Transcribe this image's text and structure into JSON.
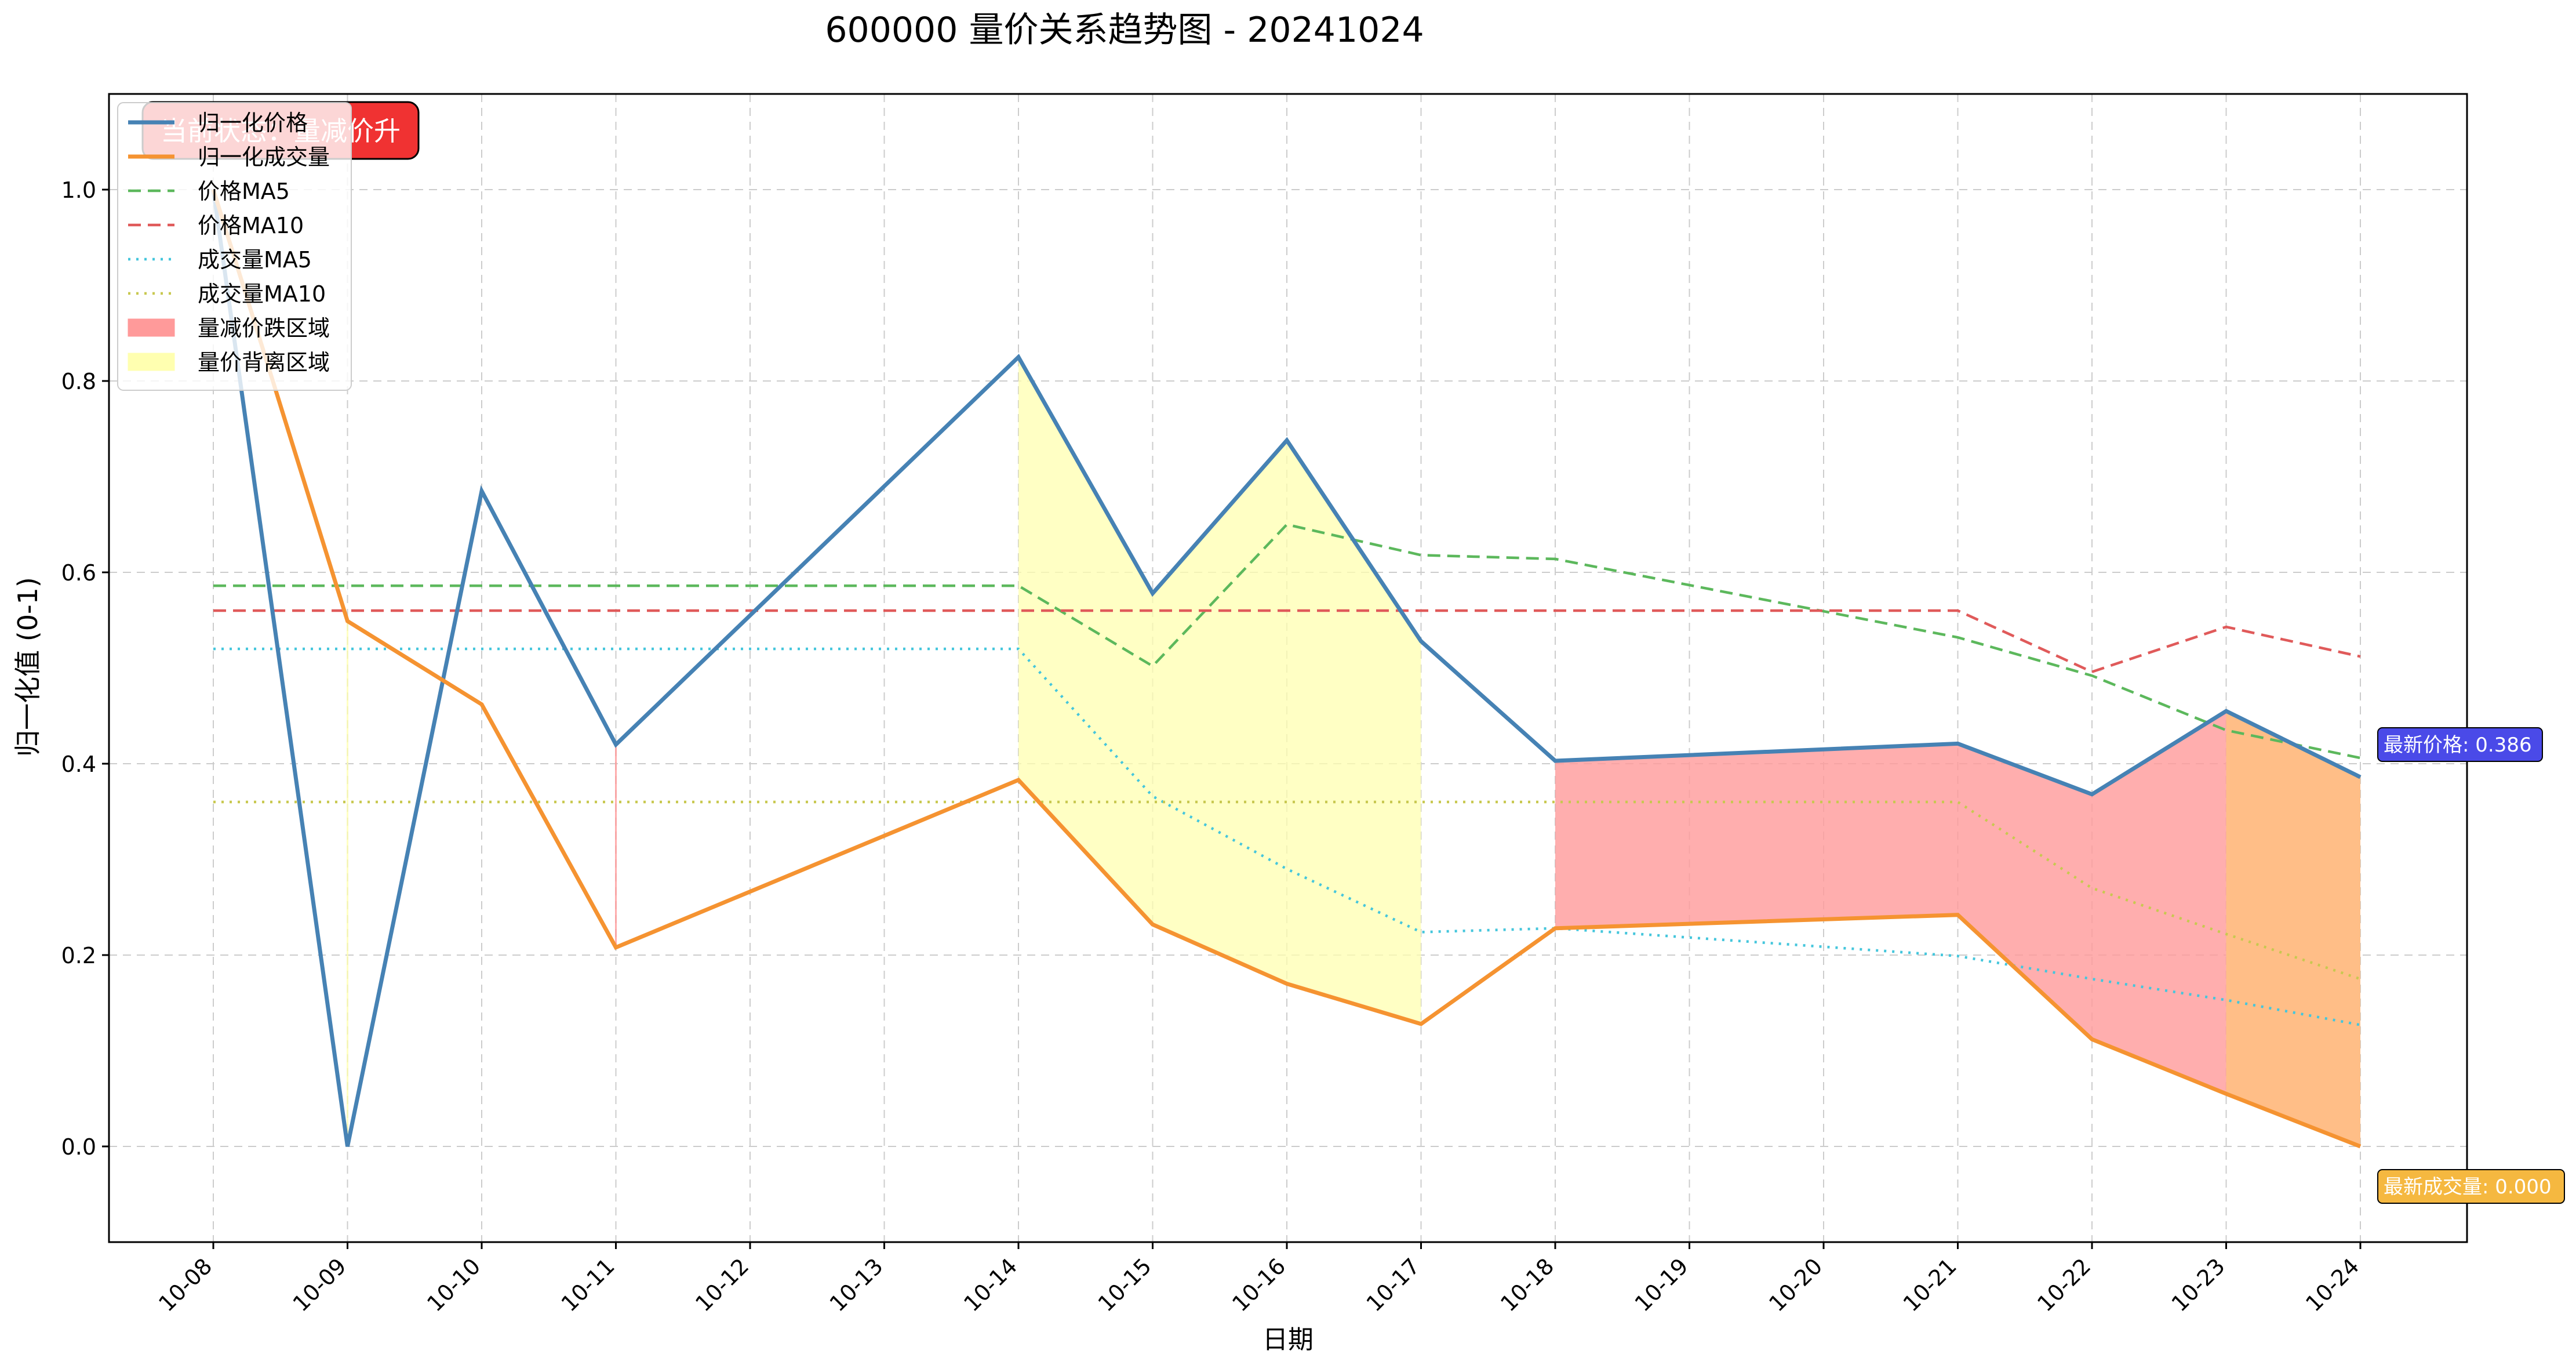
{
  "chart_data": {
    "type": "line",
    "title": "600000 量价关系趋势图 - 20241024",
    "xlabel": "日期",
    "ylabel": "归一化值 (0-1)",
    "ylim": [
      -0.1,
      1.1
    ],
    "yticks": [
      "0.0",
      "0.2",
      "0.4",
      "0.6",
      "0.8",
      "1.0"
    ],
    "grid": true,
    "legend_position": "top-left",
    "categories": [
      "10-08",
      "10-09",
      "10-10",
      "10-11",
      "10-12",
      "10-13",
      "10-14",
      "10-15",
      "10-16",
      "10-17",
      "10-18",
      "10-19",
      "10-20",
      "10-21",
      "10-22",
      "10-23",
      "10-24"
    ],
    "series": [
      {
        "name": "归一化价格",
        "style": "solid",
        "color": "#4682b4",
        "points": [
          [
            "10-08",
            1.0
          ],
          [
            "10-09",
            0.0
          ],
          [
            "10-10",
            0.685
          ],
          [
            "10-11",
            0.42
          ],
          [
            "10-14",
            0.825
          ],
          [
            "10-15",
            0.578
          ],
          [
            "10-16",
            0.738
          ],
          [
            "10-17",
            0.528
          ],
          [
            "10-18",
            0.403
          ],
          [
            "10-21",
            0.421
          ],
          [
            "10-22",
            0.368
          ],
          [
            "10-23",
            0.455
          ],
          [
            "10-24",
            0.386
          ]
        ]
      },
      {
        "name": "归一化成交量",
        "style": "solid",
        "color": "#f59331",
        "points": [
          [
            "10-08",
            1.0
          ],
          [
            "10-09",
            0.549
          ],
          [
            "10-10",
            0.462
          ],
          [
            "10-11",
            0.208
          ],
          [
            "10-14",
            0.383
          ],
          [
            "10-15",
            0.232
          ],
          [
            "10-16",
            0.17
          ],
          [
            "10-17",
            0.128
          ],
          [
            "10-18",
            0.228
          ],
          [
            "10-21",
            0.242
          ],
          [
            "10-22",
            0.112
          ],
          [
            "10-23",
            0.055
          ],
          [
            "10-24",
            0.0
          ]
        ]
      },
      {
        "name": "价格MA5",
        "style": "dashed",
        "color": "#5cb85c",
        "points": [
          [
            "10-08",
            0.586
          ],
          [
            "10-14",
            0.586
          ],
          [
            "10-15",
            0.502
          ],
          [
            "10-16",
            0.65
          ],
          [
            "10-17",
            0.618
          ],
          [
            "10-18",
            0.614
          ],
          [
            "10-21",
            0.532
          ],
          [
            "10-22",
            0.492
          ],
          [
            "10-23",
            0.435
          ],
          [
            "10-24",
            0.406
          ]
        ]
      },
      {
        "name": "价格MA10",
        "style": "dashed",
        "color": "#e05a5a",
        "points": [
          [
            "10-08",
            0.56
          ],
          [
            "10-21",
            0.56
          ],
          [
            "10-22",
            0.496
          ],
          [
            "10-23",
            0.543
          ],
          [
            "10-24",
            0.512
          ]
        ]
      },
      {
        "name": "成交量MA5",
        "style": "dotted",
        "color": "#45c6dc",
        "points": [
          [
            "10-08",
            0.52
          ],
          [
            "10-14",
            0.52
          ],
          [
            "10-15",
            0.366
          ],
          [
            "10-16",
            0.29
          ],
          [
            "10-17",
            0.224
          ],
          [
            "10-18",
            0.228
          ],
          [
            "10-21",
            0.199
          ],
          [
            "10-22",
            0.175
          ],
          [
            "10-23",
            0.153
          ],
          [
            "10-24",
            0.127
          ]
        ]
      },
      {
        "name": "成交量MA10",
        "style": "dotted",
        "color": "#c8c850",
        "points": [
          [
            "10-08",
            0.36
          ],
          [
            "10-21",
            0.36
          ],
          [
            "10-22",
            0.27
          ],
          [
            "10-23",
            0.222
          ],
          [
            "10-24",
            0.175
          ]
        ]
      }
    ],
    "fills": [
      {
        "name": "量减价跌区域",
        "color": "#ff9a9a",
        "opacity": 0.8,
        "spans": [
          [
            "10-11",
            "10-11"
          ],
          [
            "10-18",
            "10-23"
          ]
        ]
      },
      {
        "name": "量价背离区域",
        "color": "#ffffb0",
        "opacity": 0.75,
        "spans": [
          [
            "10-09",
            "10-09"
          ],
          [
            "10-14",
            "10-17"
          ]
        ]
      },
      {
        "name": "",
        "color": "#ffbe87",
        "opacity": 1.0,
        "spans": [
          [
            "10-23",
            "10-24"
          ]
        ]
      }
    ],
    "annotations": {
      "badge_text": "当前状态：量减价升",
      "badge_color": "#f03232",
      "latest_price_label": "最新价格: 0.386",
      "latest_price_color": "#4a4ae8",
      "latest_volume_label": "最新成交量: 0.000",
      "latest_volume_color": "#f5b840"
    }
  }
}
